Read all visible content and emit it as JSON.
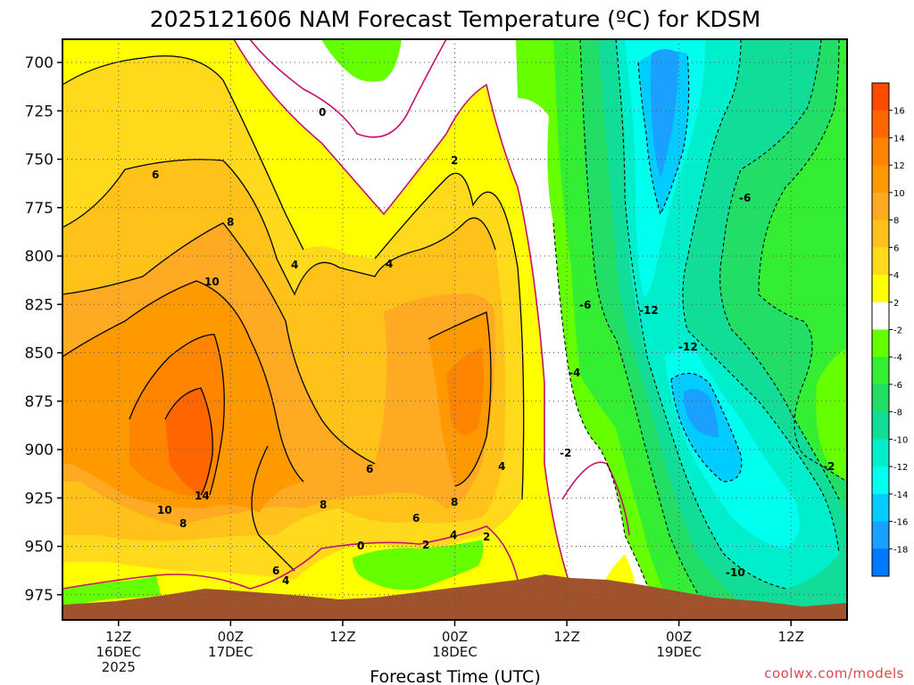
{
  "chart_data": {
    "type": "heatmap",
    "title": "2025121606 NAM Forecast Temperature (ºC) for KDSM",
    "xlabel": "Forecast Time (UTC)",
    "ylabel": "",
    "y_axis": {
      "ticks": [
        700,
        725,
        750,
        775,
        800,
        825,
        850,
        875,
        900,
        925,
        950,
        975
      ],
      "inverted": true,
      "range": [
        688,
        988
      ]
    },
    "x_axis": {
      "ticks": [
        {
          "h": 6,
          "lines": [
            "12Z",
            "16DEC",
            "2025"
          ]
        },
        {
          "h": 18,
          "lines": [
            "00Z",
            "17DEC"
          ]
        },
        {
          "h": 30,
          "lines": [
            "12Z"
          ]
        },
        {
          "h": 42,
          "lines": [
            "00Z",
            "18DEC"
          ]
        },
        {
          "h": 54,
          "lines": [
            "12Z"
          ]
        },
        {
          "h": 66,
          "lines": [
            "00Z",
            "19DEC"
          ]
        },
        {
          "h": 78,
          "lines": [
            "12Z"
          ]
        }
      ],
      "range_hours": [
        0,
        84
      ]
    },
    "colorbar": {
      "labels": [
        "16",
        "14",
        "12",
        "10",
        "8",
        "6",
        "4",
        "2",
        "-2",
        "-4",
        "-6",
        "-8",
        "-10",
        "-12",
        "-14",
        "-16",
        "-18"
      ],
      "colors": [
        "#ff4a00",
        "#ff6600",
        "#ff8500",
        "#ff9900",
        "#ffaa22",
        "#ffc21a",
        "#ffda1c",
        "#ffff00",
        "#ffffff",
        "#66ff00",
        "#33ee33",
        "#22dd66",
        "#11dd99",
        "#00eecc",
        "#00ffee",
        "#00ccff",
        "#1aa0ff",
        "#0077ff"
      ]
    },
    "contour_labels": [
      "0",
      "2",
      "4",
      "6",
      "8",
      "10",
      "14",
      "-2",
      "-4",
      "-6",
      "-10",
      "-12"
    ],
    "grid": true
  },
  "watermark": "coolwx.com/models"
}
